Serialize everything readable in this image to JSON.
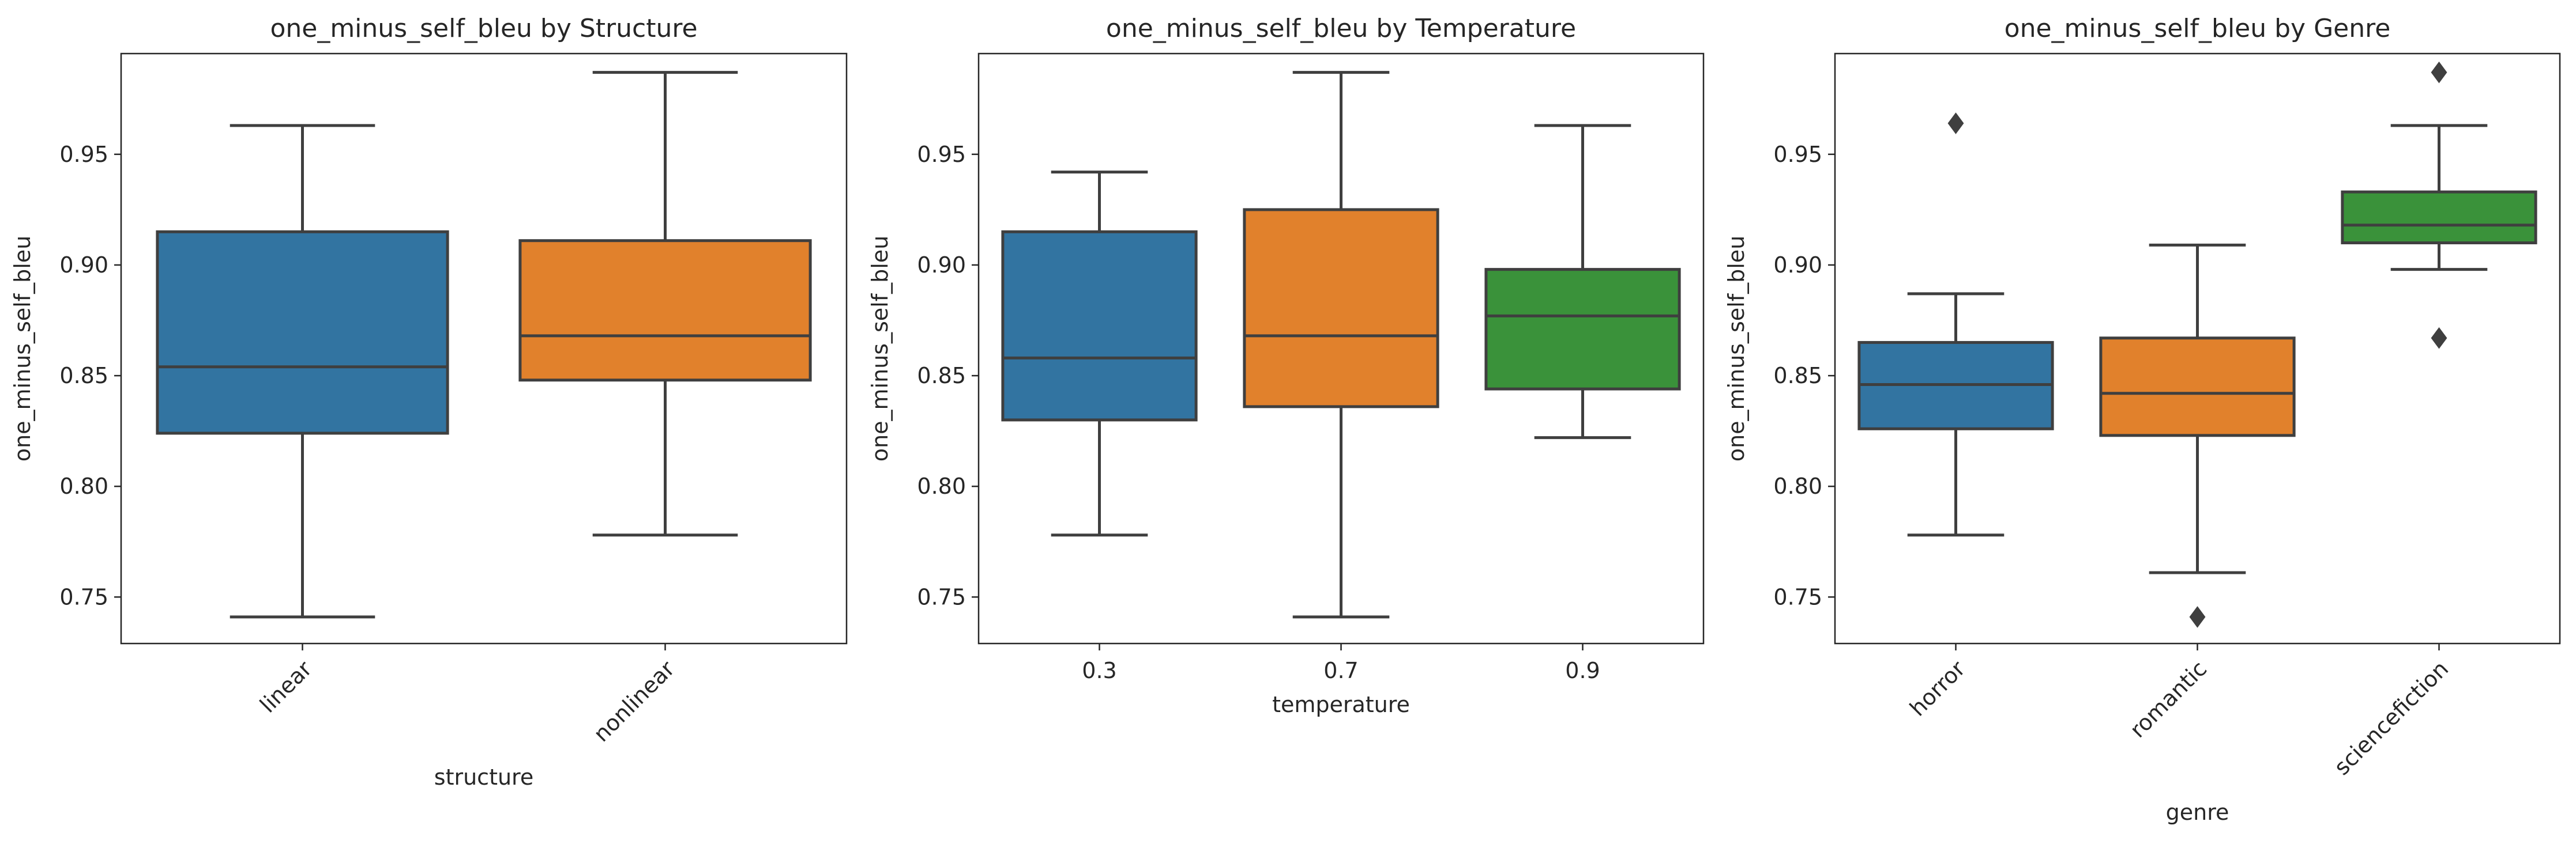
{
  "chart_data": [
    {
      "type": "box",
      "title": "one_minus_self_bleu by Structure",
      "xlabel": "structure",
      "ylabel": "one_minus_self_bleu",
      "ylim": [
        0.729,
        0.9955
      ],
      "yticks": [
        "0.75",
        "0.80",
        "0.85",
        "0.90",
        "0.95"
      ],
      "xtick_rotation": 45,
      "categories": [
        "linear",
        "nonlinear"
      ],
      "colors": [
        "#3274a1",
        "#e1812c"
      ],
      "boxes": [
        {
          "whislo": 0.741,
          "q1": 0.824,
          "med": 0.854,
          "q3": 0.915,
          "whishi": 0.963,
          "fliers": []
        },
        {
          "whislo": 0.778,
          "q1": 0.848,
          "med": 0.868,
          "q3": 0.911,
          "whishi": 0.987,
          "fliers": []
        }
      ]
    },
    {
      "type": "box",
      "title": "one_minus_self_bleu by Temperature",
      "xlabel": "temperature",
      "ylabel": "one_minus_self_bleu",
      "ylim": [
        0.729,
        0.9955
      ],
      "yticks": [
        "0.75",
        "0.80",
        "0.85",
        "0.90",
        "0.95"
      ],
      "xtick_rotation": 0,
      "categories": [
        "0.3",
        "0.7",
        "0.9"
      ],
      "colors": [
        "#3274a1",
        "#e1812c",
        "#3a923a"
      ],
      "boxes": [
        {
          "whislo": 0.778,
          "q1": 0.83,
          "med": 0.858,
          "q3": 0.915,
          "whishi": 0.942,
          "fliers": []
        },
        {
          "whislo": 0.741,
          "q1": 0.836,
          "med": 0.868,
          "q3": 0.925,
          "whishi": 0.987,
          "fliers": []
        },
        {
          "whislo": 0.822,
          "q1": 0.844,
          "med": 0.877,
          "q3": 0.898,
          "whishi": 0.963,
          "fliers": []
        }
      ]
    },
    {
      "type": "box",
      "title": "one_minus_self_bleu by Genre",
      "xlabel": "genre",
      "ylabel": "one_minus_self_bleu",
      "ylim": [
        0.729,
        0.9955
      ],
      "yticks": [
        "0.75",
        "0.80",
        "0.85",
        "0.90",
        "0.95"
      ],
      "xtick_rotation": 45,
      "categories": [
        "horror",
        "romantic",
        "sciencefiction"
      ],
      "colors": [
        "#3274a1",
        "#e1812c",
        "#3a923a"
      ],
      "boxes": [
        {
          "whislo": 0.778,
          "q1": 0.826,
          "med": 0.846,
          "q3": 0.865,
          "whishi": 0.887,
          "fliers": [
            0.964
          ]
        },
        {
          "whislo": 0.761,
          "q1": 0.823,
          "med": 0.842,
          "q3": 0.867,
          "whishi": 0.909,
          "fliers": [
            0.741
          ]
        },
        {
          "whislo": 0.898,
          "q1": 0.91,
          "med": 0.918,
          "q3": 0.933,
          "whishi": 0.963,
          "fliers": [
            0.867,
            0.987
          ]
        }
      ]
    }
  ]
}
